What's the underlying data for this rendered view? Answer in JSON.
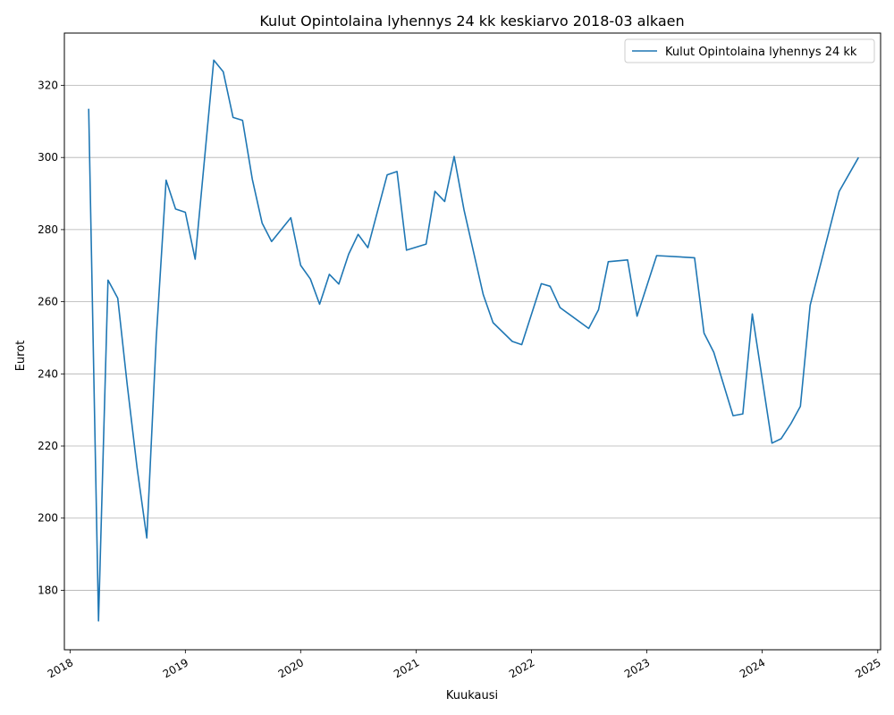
{
  "chart_data": {
    "type": "line",
    "title": "Kulut Opintolaina lyhennys 24 kk keskiarvo 2018-03 alkaen",
    "xlabel": "Kuukausi",
    "ylabel": "Eurot",
    "xlim": [
      "2017-12-14",
      "2025-01-10"
    ],
    "ylim": [
      163.5,
      334.5
    ],
    "x_ticks": [
      "2018",
      "2019",
      "2020",
      "2021",
      "2022",
      "2023",
      "2024",
      "2025"
    ],
    "y_ticks": [
      180,
      200,
      220,
      240,
      260,
      280,
      300,
      320
    ],
    "grid": "horizontal",
    "legend": "top-right",
    "colors": {
      "line": "#1f77b4"
    },
    "series": [
      {
        "name": "Kulut Opintolaina lyhennys 24 kk",
        "points": [
          [
            "2018-03-01",
            313.5
          ],
          [
            "2018-04-01",
            171.5
          ],
          [
            "2018-05-01",
            266.0
          ],
          [
            "2018-06-01",
            261.0
          ],
          [
            "2018-07-01",
            237.0
          ],
          [
            "2018-08-01",
            214.0
          ],
          [
            "2018-09-01",
            194.5
          ],
          [
            "2018-10-01",
            250.0
          ],
          [
            "2018-11-01",
            293.7
          ],
          [
            "2018-12-01",
            285.7
          ],
          [
            "2019-01-01",
            284.8
          ],
          [
            "2019-02-01",
            271.8
          ],
          [
            "2019-04-01",
            327.0
          ],
          [
            "2019-05-01",
            323.8
          ],
          [
            "2019-06-01",
            311.1
          ],
          [
            "2019-07-01",
            310.3
          ],
          [
            "2019-08-01",
            294.0
          ],
          [
            "2019-09-01",
            281.8
          ],
          [
            "2019-10-01",
            276.7
          ],
          [
            "2019-12-01",
            283.3
          ],
          [
            "2020-01-01",
            270.1
          ],
          [
            "2020-02-01",
            266.3
          ],
          [
            "2020-03-01",
            259.3
          ],
          [
            "2020-04-01",
            267.6
          ],
          [
            "2020-05-01",
            264.9
          ],
          [
            "2020-06-01",
            273.2
          ],
          [
            "2020-07-01",
            278.7
          ],
          [
            "2020-08-01",
            275.0
          ],
          [
            "2020-10-01",
            295.2
          ],
          [
            "2020-11-01",
            296.1
          ],
          [
            "2020-12-01",
            274.3
          ],
          [
            "2021-02-01",
            276.0
          ],
          [
            "2021-03-01",
            290.6
          ],
          [
            "2021-04-01",
            287.8
          ],
          [
            "2021-05-01",
            300.3
          ],
          [
            "2021-06-01",
            285.5
          ],
          [
            "2021-08-01",
            262.0
          ],
          [
            "2021-09-01",
            254.2
          ],
          [
            "2021-11-01",
            249.0
          ],
          [
            "2021-12-01",
            248.1
          ],
          [
            "2022-02-01",
            265.0
          ],
          [
            "2022-03-01",
            264.3
          ],
          [
            "2022-04-01",
            258.4
          ],
          [
            "2022-07-01",
            252.6
          ],
          [
            "2022-08-01",
            257.8
          ],
          [
            "2022-09-01",
            271.1
          ],
          [
            "2022-11-01",
            271.6
          ],
          [
            "2022-12-01",
            256.0
          ],
          [
            "2023-02-01",
            272.8
          ],
          [
            "2023-06-01",
            272.2
          ],
          [
            "2023-07-01",
            251.3
          ],
          [
            "2023-08-01",
            246.0
          ],
          [
            "2023-10-01",
            228.4
          ],
          [
            "2023-11-01",
            228.9
          ],
          [
            "2023-12-01",
            256.6
          ],
          [
            "2024-02-01",
            220.8
          ],
          [
            "2024-03-01",
            222.0
          ],
          [
            "2024-04-01",
            226.2
          ],
          [
            "2024-05-01",
            231.0
          ],
          [
            "2024-06-01",
            259.0
          ],
          [
            "2024-09-01",
            290.6
          ],
          [
            "2024-11-01",
            300.0
          ]
        ]
      }
    ]
  }
}
